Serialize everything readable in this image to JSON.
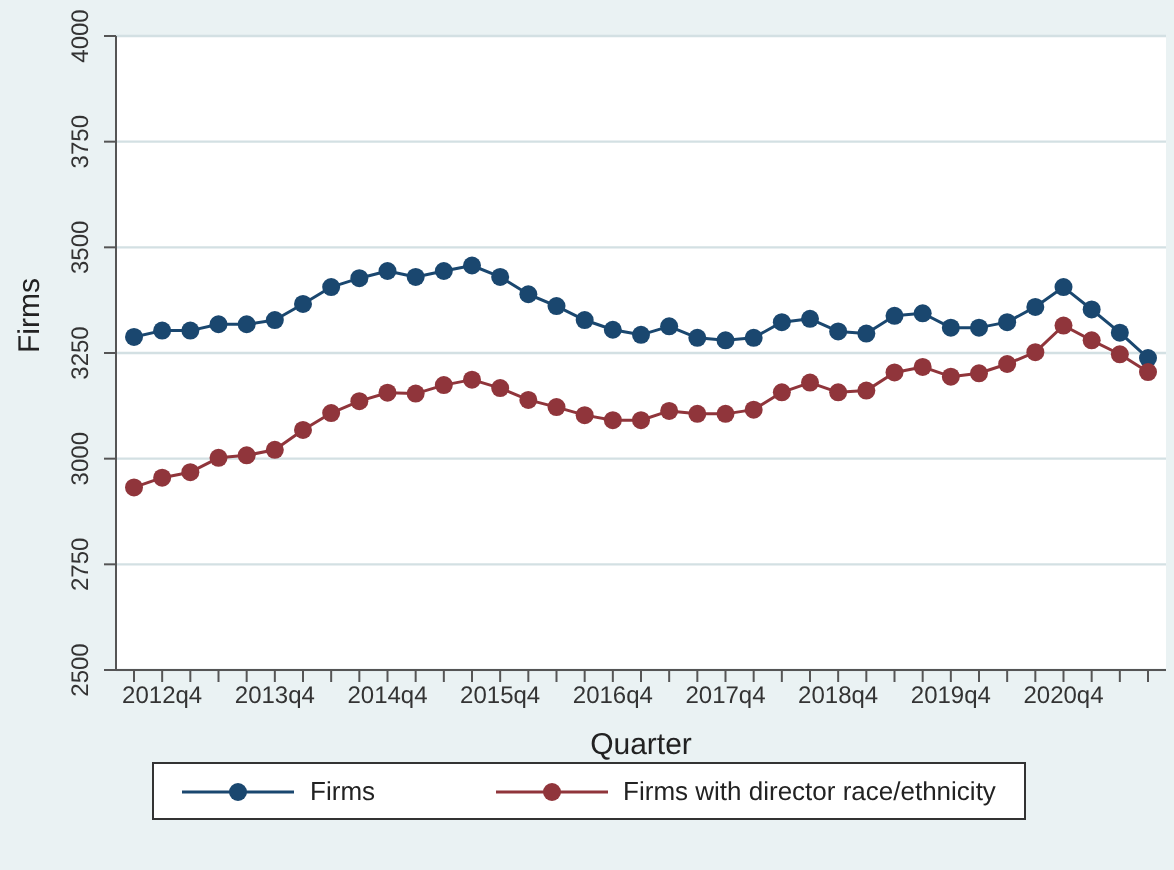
{
  "chart_data": {
    "type": "line",
    "xlabel": "Quarter",
    "ylabel": "Firms",
    "categories": [
      null,
      "2012q4",
      null,
      null,
      null,
      "2013q4",
      null,
      null,
      null,
      "2014q4",
      null,
      null,
      null,
      "2015q4",
      null,
      null,
      null,
      "2016q4",
      null,
      null,
      null,
      "2017q4",
      null,
      null,
      null,
      "2018q4",
      null,
      null,
      null,
      "2019q4",
      null,
      null,
      null,
      "2020q4",
      null,
      null,
      null
    ],
    "series": [
      {
        "name": "Firms",
        "color": "#1a476f",
        "values": [
          3288,
          3303,
          3303,
          3318,
          3318,
          3328,
          3366,
          3406,
          3427,
          3444,
          3430,
          3444,
          3457,
          3430,
          3389,
          3361,
          3328,
          3305,
          3293,
          3313,
          3286,
          3280,
          3286,
          3323,
          3331,
          3301,
          3296,
          3338,
          3344,
          3310,
          3310,
          3323,
          3359,
          3406,
          3353,
          3298,
          3238
        ]
      },
      {
        "name": "Firms with director race/ethnicity",
        "color": "#90353b",
        "values": [
          2932,
          2955,
          2968,
          3002,
          3008,
          3021,
          3068,
          3108,
          3136,
          3156,
          3154,
          3174,
          3187,
          3167,
          3139,
          3122,
          3103,
          3091,
          3091,
          3113,
          3106,
          3106,
          3116,
          3157,
          3180,
          3157,
          3161,
          3204,
          3217,
          3194,
          3202,
          3224,
          3252,
          3315,
          3280,
          3247,
          3205
        ]
      }
    ],
    "ylim": [
      2500,
      4000
    ],
    "yticks": [
      2500,
      2750,
      3000,
      3250,
      3500,
      3750,
      4000
    ],
    "grid": "y",
    "legend": "bottom",
    "marker": "circle",
    "line_style": "solid"
  }
}
